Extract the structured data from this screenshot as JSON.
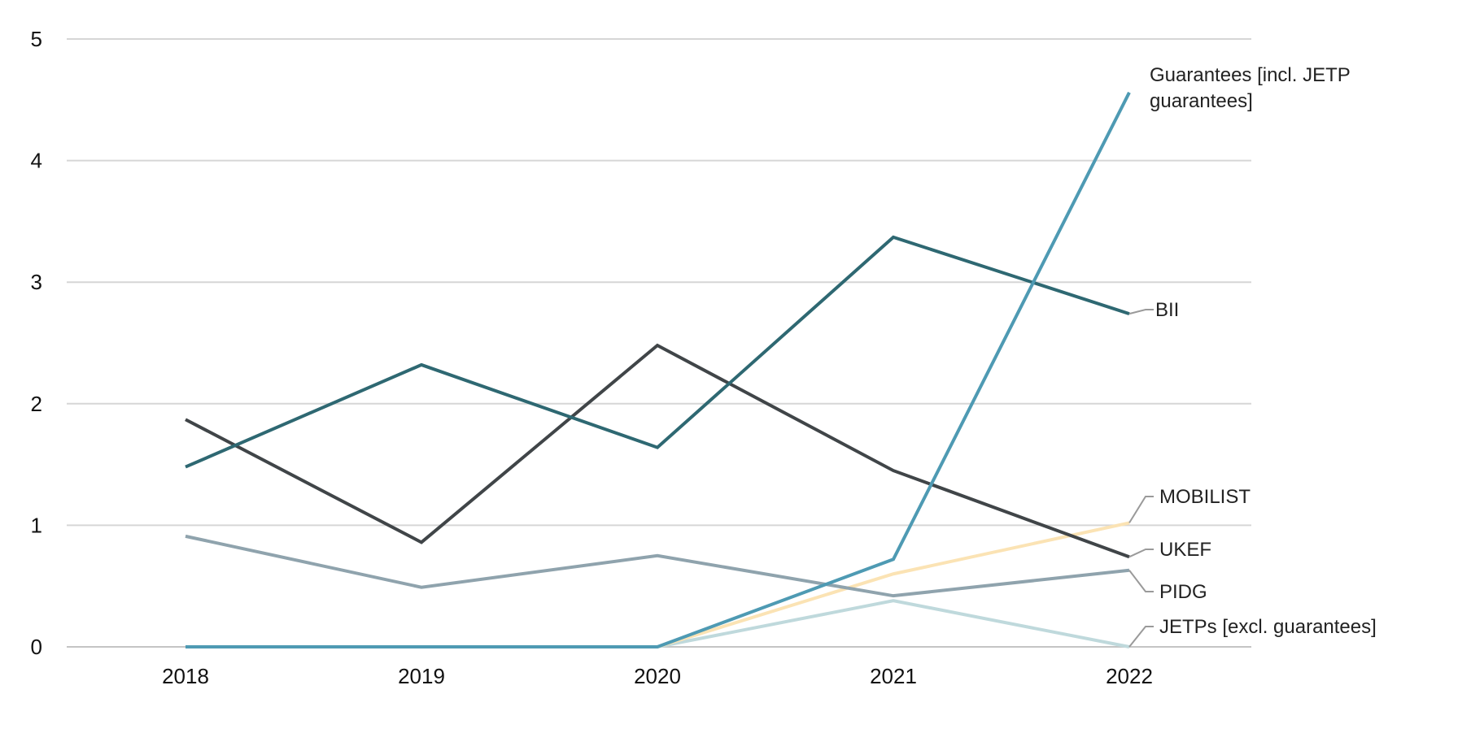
{
  "chart_data": {
    "type": "line",
    "title": "",
    "xlabel": "",
    "ylabel": "",
    "categories": [
      "2018",
      "2019",
      "2020",
      "2021",
      "2022"
    ],
    "ylim": [
      0,
      5
    ],
    "yticks": [
      "0",
      "1",
      "2",
      "3",
      "4",
      "5"
    ],
    "grid": true,
    "legend": "direct labels at right end of lines",
    "series": [
      {
        "name": "BII",
        "label_lines": [
          "BII"
        ],
        "color": "#2e6872",
        "values": [
          1.48,
          2.32,
          1.64,
          3.37,
          2.74
        ]
      },
      {
        "name": "UKEF",
        "label_lines": [
          "UKEF"
        ],
        "color": "#404548",
        "values": [
          1.87,
          0.86,
          2.48,
          1.45,
          0.74
        ]
      },
      {
        "name": "PIDG",
        "label_lines": [
          "PIDG"
        ],
        "color": "#8fa3ad",
        "values": [
          0.91,
          0.49,
          0.75,
          0.42,
          0.63
        ]
      },
      {
        "name": "Guarantees [incl. JETP guarantees]",
        "label_lines": [
          "Guarantees  [incl. JETP",
          "guarantees]"
        ],
        "color": "#4e9ab3",
        "values": [
          0,
          0,
          0,
          0.72,
          4.56
        ]
      },
      {
        "name": "MOBILIST",
        "label_lines": [
          "MOBILIST"
        ],
        "color": "#fbe3b4",
        "values": [
          0,
          0,
          0,
          0.6,
          1.02
        ]
      },
      {
        "name": "JETPs [excl. guarantees]",
        "label_lines": [
          "JETPs [excl. guarantees]"
        ],
        "color": "#bfd9dc",
        "values": [
          0,
          0,
          0,
          0.38,
          0
        ]
      }
    ]
  }
}
